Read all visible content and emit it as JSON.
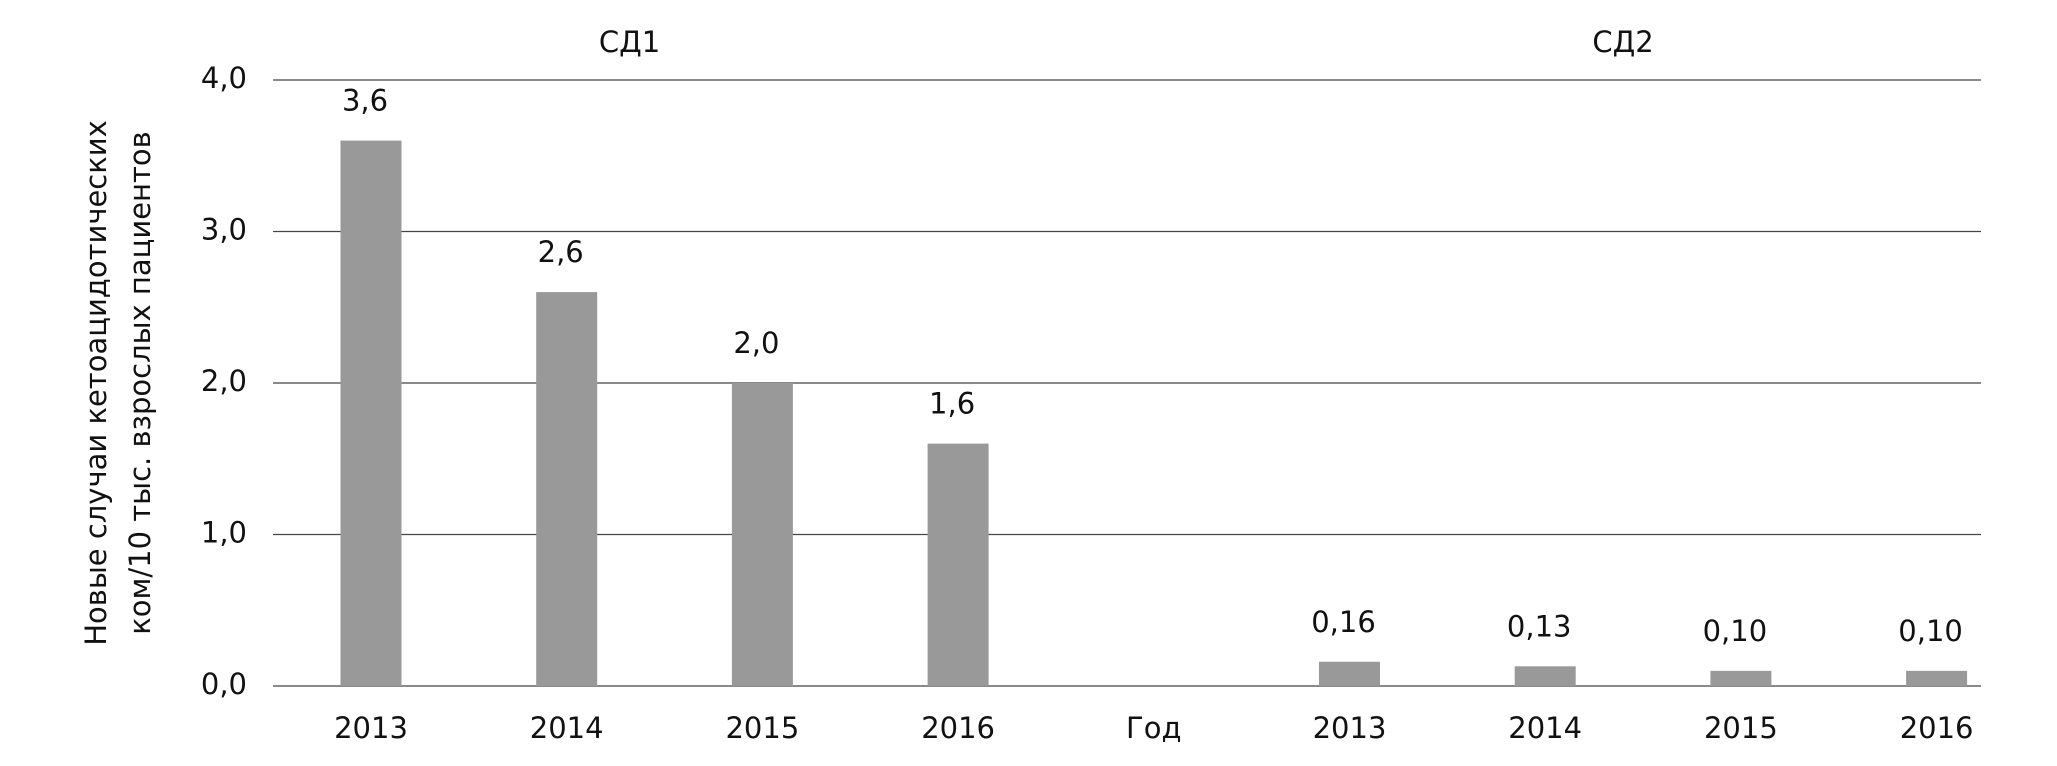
{
  "chart_data": {
    "type": "bar",
    "ylabel": [
      "Новые случаи  кетоацидотических",
      "ком/10 тыс.  взрослых пациентов"
    ],
    "groups": [
      "СД1",
      "СД2"
    ],
    "categories": [
      "2013",
      "2014",
      "2015",
      "2016",
      "Год",
      "2013",
      "2014",
      "2015",
      "2016"
    ],
    "values": [
      3.6,
      2.6,
      2.0,
      1.6,
      null,
      0.16,
      0.13,
      0.1,
      0.1
    ],
    "value_labels": [
      "3,6",
      "2,6",
      "2,0",
      "1,6",
      null,
      "0,16",
      "0,13",
      "0,10",
      "0,10"
    ],
    "color": "#999999",
    "ylim": [
      0,
      4
    ],
    "yticks": [
      {
        "value": 0,
        "label": "0,0"
      },
      {
        "value": 1,
        "label": "1,0"
      },
      {
        "value": 2,
        "label": "2,0"
      },
      {
        "value": 3,
        "label": "3,0"
      },
      {
        "value": 4,
        "label": "4,0"
      }
    ],
    "grid": true
  }
}
